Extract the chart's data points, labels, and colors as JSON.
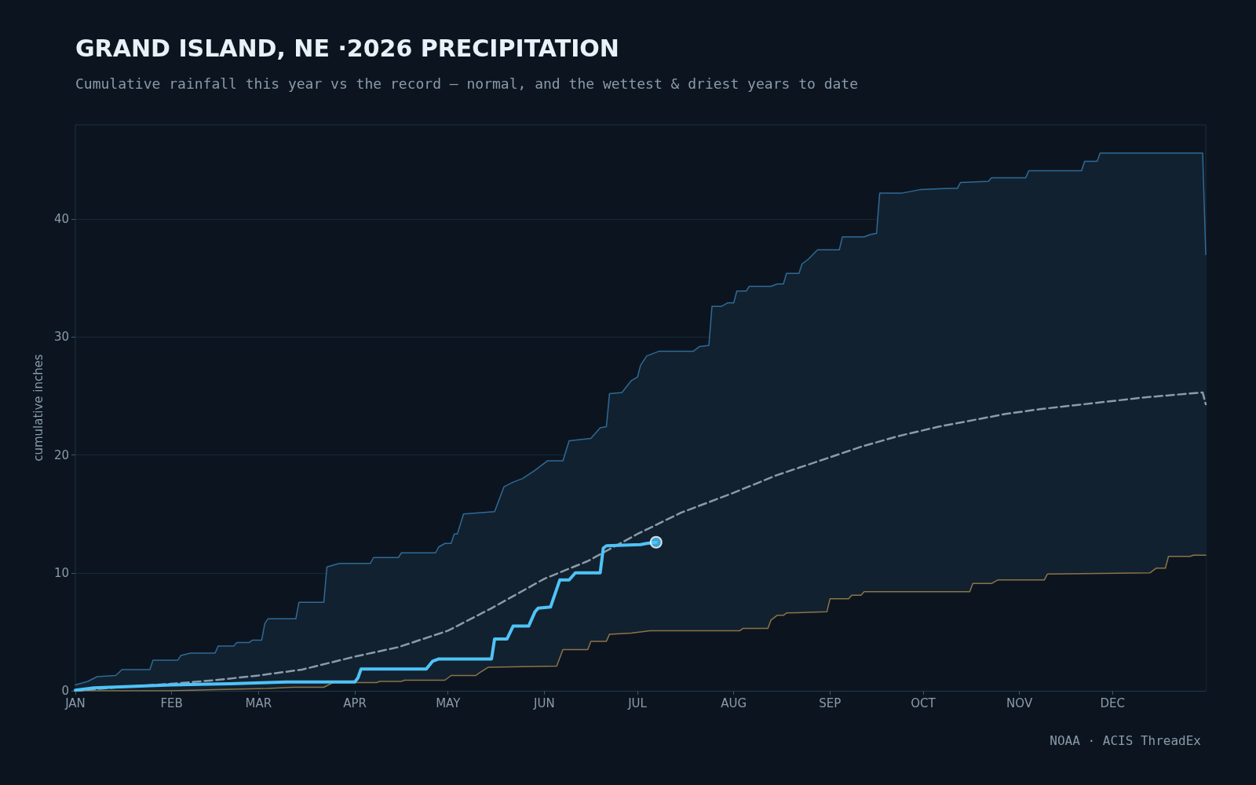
{
  "chart_data": {
    "type": "line",
    "title": "GRAND ISLAND, NE ·2026 PRECIPITATION",
    "subtitle": "Cumulative rainfall this year vs the record — normal, and the wettest & driest years to date",
    "ylabel": "cumulative inches",
    "annotations": [
      "NOAA · ACIS ThreadEx"
    ],
    "xlim": [
      "--01-01",
      "--12-31"
    ],
    "xticks": [
      {
        "value": "--01-01",
        "label": "JAN"
      },
      {
        "value": "--02-01",
        "label": "FEB"
      },
      {
        "value": "--03-01",
        "label": "MAR"
      },
      {
        "value": "--04-01",
        "label": "APR"
      },
      {
        "value": "--05-01",
        "label": "MAY"
      },
      {
        "value": "--06-01",
        "label": "JUN"
      },
      {
        "value": "--07-01",
        "label": "JUL"
      },
      {
        "value": "--08-01",
        "label": "AUG"
      },
      {
        "value": "--09-01",
        "label": "SEP"
      },
      {
        "value": "--10-01",
        "label": "OCT"
      },
      {
        "value": "--11-01",
        "label": "NOV"
      },
      {
        "value": "--12-01",
        "label": "DEC"
      }
    ],
    "ylim": [
      0,
      48
    ],
    "yticks": [
      0,
      10,
      20,
      30,
      40
    ],
    "grid": "y",
    "marker": "none",
    "series": [
      {
        "type": "area",
        "color": "#2e6b98",
        "x": [
          "--01-01",
          "--01-05",
          "--01-08",
          "--01-14",
          "--01-16",
          "--01-25",
          "--01-26",
          "--02-03",
          "--02-04",
          "--02-07",
          "--02-15",
          "--02-16",
          "--02-21",
          "--02-22",
          "--02-26",
          "--02-27",
          "--03-02",
          "--03-03",
          "--03-04",
          "--03-13",
          "--03-14",
          "--03-22",
          "--03-23",
          "--03-27",
          "--04-06",
          "--04-07",
          "--04-15",
          "--04-16",
          "--04-27",
          "--04-28",
          "--04-30",
          "--05-02",
          "--05-03",
          "--05-04",
          "--05-06",
          "--05-16",
          "--05-19",
          "--05-22",
          "--05-25",
          "--05-29",
          "--06-02",
          "--06-07",
          "--06-09",
          "--06-16",
          "--06-19",
          "--06-21",
          "--06-22",
          "--06-26",
          "--06-29",
          "--07-01",
          "--07-02",
          "--07-04",
          "--07-08",
          "--07-19",
          "--07-21",
          "--07-24",
          "--07-25",
          "--07-28",
          "--07-30",
          "--08-01",
          "--08-02",
          "--08-05",
          "--08-06",
          "--08-13",
          "--08-15",
          "--08-17",
          "--08-18",
          "--08-22",
          "--08-23",
          "--08-25",
          "--08-28",
          "--09-04",
          "--09-05",
          "--09-12",
          "--09-14",
          "--09-16",
          "--09-17",
          "--09-24",
          "--09-30",
          "--10-09",
          "--10-12",
          "--10-13",
          "--10-22",
          "--10-23",
          "--11-03",
          "--11-04",
          "--11-21",
          "--11-22",
          "--11-26",
          "--11-27",
          "--12-30",
          "--12-31"
        ],
        "values": [
          0.5,
          0.8,
          1.2,
          1.3,
          1.8,
          1.8,
          2.6,
          2.6,
          3.0,
          3.2,
          3.2,
          3.8,
          3.8,
          4.1,
          4.1,
          4.3,
          4.3,
          5.7,
          6.1,
          6.1,
          7.5,
          7.5,
          10.5,
          10.8,
          10.8,
          11.3,
          11.3,
          11.7,
          11.7,
          12.2,
          12.5,
          12.5,
          13.3,
          13.3,
          15.0,
          15.2,
          17.3,
          17.7,
          18.0,
          18.7,
          19.5,
          19.5,
          21.2,
          21.4,
          22.3,
          22.4,
          25.2,
          25.3,
          26.3,
          26.6,
          27.6,
          28.4,
          28.8,
          28.8,
          29.2,
          29.3,
          32.6,
          32.6,
          32.9,
          32.9,
          33.9,
          33.9,
          34.3,
          34.3,
          34.5,
          34.5,
          35.4,
          35.4,
          36.2,
          36.6,
          37.4,
          37.4,
          38.5,
          38.5,
          38.7,
          38.8,
          42.2,
          42.2,
          42.5,
          42.6,
          42.6,
          43.1,
          43.2,
          43.5,
          43.5,
          44.1,
          44.1,
          44.9,
          44.9,
          45.6,
          45.6,
          37.0
        ]
      },
      {
        "type": "area",
        "color": "#8c7448",
        "x": [
          "--01-01",
          "--01-31",
          "--02-15",
          "--03-04",
          "--03-12",
          "--03-22",
          "--03-25",
          "--04-08",
          "--04-09",
          "--04-16",
          "--04-17",
          "--04-30",
          "--05-02",
          "--05-10",
          "--05-11",
          "--05-14",
          "--06-05",
          "--06-07",
          "--06-15",
          "--06-16",
          "--06-21",
          "--06-22",
          "--06-29",
          "--07-05",
          "--08-03",
          "--08-04",
          "--08-12",
          "--08-13",
          "--08-15",
          "--08-17",
          "--08-18",
          "--08-31",
          "--09-01",
          "--09-07",
          "--09-08",
          "--09-11",
          "--09-12",
          "--10-16",
          "--10-17",
          "--10-23",
          "--10-25",
          "--11-09",
          "--11-10",
          "--12-13",
          "--12-15",
          "--12-18",
          "--12-19",
          "--12-26",
          "--12-27",
          "--12-31"
        ],
        "values": [
          0.0,
          0.0,
          0.1,
          0.2,
          0.3,
          0.3,
          0.7,
          0.7,
          0.8,
          0.8,
          0.9,
          0.9,
          1.3,
          1.3,
          1.5,
          2.0,
          2.1,
          3.5,
          3.5,
          4.2,
          4.2,
          4.8,
          4.9,
          5.1,
          5.1,
          5.3,
          5.3,
          6.0,
          6.4,
          6.4,
          6.6,
          6.7,
          7.8,
          7.8,
          8.1,
          8.1,
          8.4,
          8.4,
          9.1,
          9.1,
          9.4,
          9.4,
          9.9,
          10.0,
          10.4,
          10.4,
          11.4,
          11.4,
          11.5,
          11.5
        ]
      },
      {
        "color": "#8a9bab",
        "line_style": "dashed",
        "x": [
          "--01-01",
          "--01-15",
          "--02-01",
          "--02-15",
          "--03-01",
          "--03-15",
          "--04-01",
          "--04-15",
          "--05-01",
          "--05-15",
          "--06-01",
          "--06-15",
          "--07-01",
          "--07-15",
          "--08-01",
          "--08-15",
          "--09-01",
          "--09-11",
          "--09-23",
          "--10-06",
          "--10-18",
          "--10-28",
          "--11-08",
          "--11-25",
          "--12-12",
          "--12-30",
          "--12-31"
        ],
        "values": [
          0.0,
          0.3,
          0.6,
          0.9,
          1.3,
          1.8,
          2.9,
          3.7,
          5.1,
          7.0,
          9.5,
          11.0,
          13.3,
          15.1,
          16.8,
          18.3,
          19.8,
          20.7,
          21.6,
          22.4,
          23.0,
          23.5,
          23.9,
          24.4,
          24.9,
          25.3,
          24.3
        ]
      },
      {
        "color": "#4fc3f7",
        "x": [
          "--01-01",
          "--01-07",
          "--02-01",
          "--02-20",
          "--03-10",
          "--04-01",
          "--04-02",
          "--04-03",
          "--04-24",
          "--04-26",
          "--04-28",
          "--05-15",
          "--05-16",
          "--05-20",
          "--05-22",
          "--05-27",
          "--05-29",
          "--05-30",
          "--06-03",
          "--06-06",
          "--06-09",
          "--06-11",
          "--06-19",
          "--06-20",
          "--06-21",
          "--07-02",
          "--07-04",
          "--07-07"
        ],
        "values": [
          0.05,
          0.25,
          0.5,
          0.6,
          0.75,
          0.75,
          1.1,
          1.85,
          1.85,
          2.5,
          2.7,
          2.7,
          4.4,
          4.4,
          5.5,
          5.5,
          6.7,
          7.0,
          7.1,
          9.4,
          9.4,
          10.0,
          10.0,
          12.1,
          12.3,
          12.4,
          12.5,
          12.6
        ]
      },
      {
        "type": "scatter",
        "color": "#4fc3f7",
        "marker": "circle",
        "x": [
          "--07-07"
        ],
        "values": [
          12.6
        ]
      }
    ]
  }
}
